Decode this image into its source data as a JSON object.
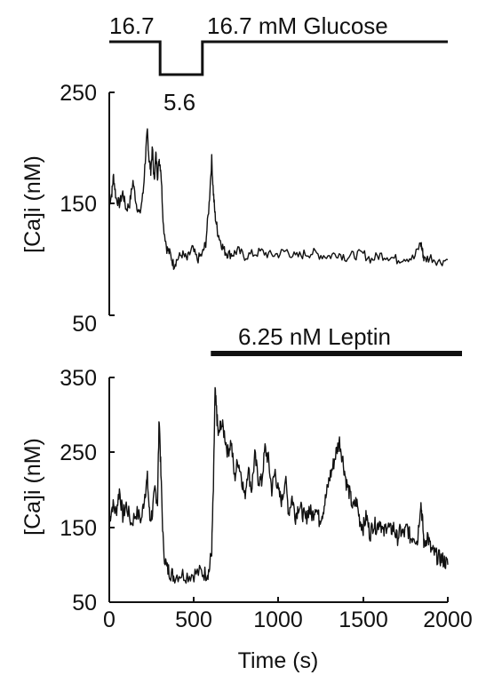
{
  "chart_data": [
    {
      "type": "line",
      "panel": "top",
      "ylabel": "[Ca]i (nM)",
      "ylim": [
        50,
        250
      ],
      "yticks": [
        "250",
        "150",
        "50"
      ],
      "xlim": [
        0,
        2000
      ],
      "protocol": {
        "label_before": "16.7",
        "label_low": "5.6",
        "label_after": "16.7 mM Glucose",
        "steps": [
          {
            "x": [
              0,
              300
            ],
            "level": 16.7
          },
          {
            "x": [
              300,
              550
            ],
            "level": 5.6
          },
          {
            "x": [
              550,
              2000
            ],
            "level": 16.7
          }
        ]
      },
      "series": [
        {
          "x": [
            0,
            15,
            25,
            40,
            60,
            80,
            100,
            120,
            140,
            160,
            180,
            200,
            215,
            225,
            235,
            245,
            255,
            265,
            275,
            285,
            295,
            305,
            320,
            340,
            360,
            380,
            400,
            430,
            460,
            490,
            520,
            550,
            570,
            590,
            605,
            615,
            625,
            640,
            660,
            680,
            700,
            730,
            760,
            800,
            850,
            900,
            950,
            1000,
            1050,
            1100,
            1150,
            1200,
            1250,
            1300,
            1350,
            1400,
            1450,
            1500,
            1550,
            1600,
            1650,
            1700,
            1750,
            1800,
            1840,
            1850,
            1860,
            1900,
            1950,
            2000
          ],
          "y": [
            150,
            160,
            175,
            155,
            150,
            160,
            145,
            150,
            170,
            150,
            140,
            160,
            195,
            215,
            190,
            180,
            200,
            170,
            195,
            175,
            190,
            180,
            130,
            110,
            105,
            95,
            100,
            105,
            100,
            110,
            100,
            105,
            115,
            150,
            190,
            160,
            140,
            125,
            115,
            108,
            105,
            105,
            108,
            103,
            105,
            107,
            104,
            105,
            108,
            102,
            105,
            106,
            104,
            103,
            106,
            102,
            104,
            105,
            100,
            104,
            103,
            100,
            102,
            101,
            115,
            108,
            100,
            102,
            98,
            100
          ]
        }
      ]
    },
    {
      "type": "line",
      "panel": "bottom",
      "xlabel": "Time (s)",
      "ylabel": "[Ca]i (nM)",
      "ylim": [
        50,
        350
      ],
      "yticks": [
        "350",
        "250",
        "150",
        "50"
      ],
      "xlim": [
        0,
        2000
      ],
      "xticks": [
        "0",
        "500",
        "1000",
        "1500",
        "2000"
      ],
      "treatment": {
        "label": "6.25 nM Leptin",
        "x": [
          600,
          2000
        ]
      },
      "series": [
        {
          "x": [
            0,
            20,
            40,
            60,
            80,
            100,
            130,
            160,
            190,
            210,
            225,
            240,
            255,
            270,
            285,
            295,
            305,
            320,
            340,
            360,
            380,
            420,
            460,
            500,
            540,
            570,
            590,
            605,
            615,
            625,
            635,
            645,
            660,
            680,
            700,
            720,
            740,
            760,
            780,
            800,
            820,
            840,
            860,
            880,
            900,
            920,
            940,
            960,
            980,
            1000,
            1020,
            1040,
            1060,
            1080,
            1100,
            1120,
            1140,
            1160,
            1180,
            1200,
            1220,
            1240,
            1260,
            1280,
            1300,
            1320,
            1340,
            1360,
            1380,
            1400,
            1420,
            1440,
            1460,
            1480,
            1500,
            1520,
            1540,
            1560,
            1580,
            1600,
            1620,
            1640,
            1660,
            1680,
            1700,
            1720,
            1740,
            1760,
            1780,
            1800,
            1820,
            1840,
            1850,
            1860,
            1880,
            1900,
            1920,
            1940,
            1960,
            1980,
            2000
          ],
          "y": [
            160,
            180,
            170,
            200,
            165,
            180,
            155,
            170,
            160,
            195,
            215,
            160,
            170,
            200,
            185,
            300,
            220,
            120,
            95,
            90,
            85,
            88,
            86,
            88,
            90,
            88,
            92,
            120,
            200,
            330,
            300,
            270,
            290,
            275,
            250,
            265,
            215,
            240,
            220,
            190,
            230,
            200,
            245,
            215,
            210,
            255,
            240,
            200,
            225,
            195,
            185,
            215,
            170,
            190,
            165,
            180,
            170,
            160,
            175,
            165,
            180,
            160,
            170,
            190,
            215,
            230,
            250,
            265,
            240,
            210,
            195,
            175,
            185,
            160,
            150,
            165,
            140,
            155,
            150,
            160,
            140,
            155,
            145,
            150,
            135,
            145,
            140,
            150,
            135,
            140,
            130,
            185,
            160,
            125,
            140,
            120,
            115,
            110,
            108,
            105,
            100
          ]
        }
      ]
    }
  ]
}
